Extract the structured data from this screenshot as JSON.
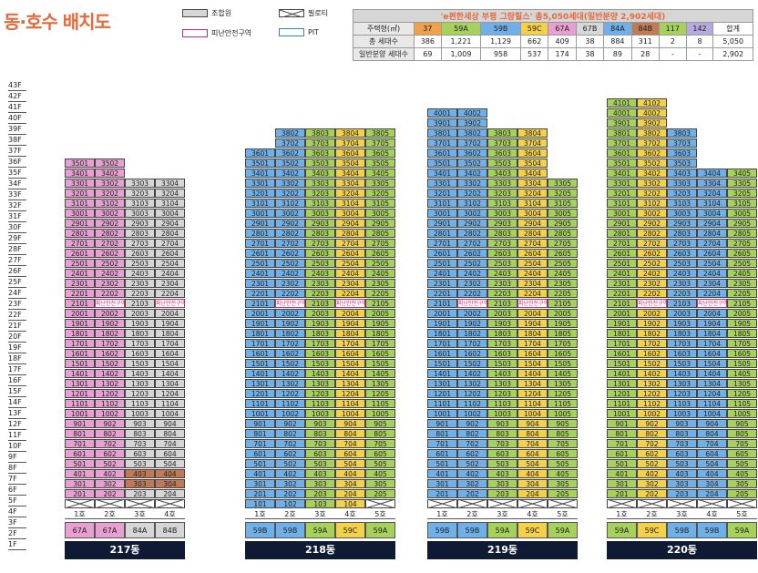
{
  "title": "동·호수 배치도",
  "legend": {
    "joint": "조합원",
    "pilotis": "필로티",
    "refuge": "피난안전구역",
    "pit": "PIT"
  },
  "stats": {
    "header": "'e편한세상 부평 그랑힐스' 총5,050세대(일반분양 2,902세대)",
    "col_label": "주택형(㎡)",
    "types": [
      "37",
      "59A",
      "59B",
      "59C",
      "67A",
      "67B",
      "84A",
      "84B",
      "117",
      "142",
      "합계"
    ],
    "type_colors": [
      "#f0a24a",
      "#a6d15a",
      "#6fb0e8",
      "#f3d24a",
      "#e7a0d1",
      "#d8d8d8",
      "#6fb0e8",
      "#c07a55",
      "#a6d15a",
      "#b7a8e0",
      "#ffffff"
    ],
    "total_label": "총 세대수",
    "totals": [
      "386",
      "1,221",
      "1,129",
      "662",
      "409",
      "38",
      "884",
      "311",
      "2",
      "8",
      "5,050"
    ],
    "general_label": "일반분양 세대수",
    "general": [
      "69",
      "1,009",
      "958",
      "537",
      "174",
      "38",
      "89",
      "28",
      "-",
      "-",
      "2,902"
    ]
  },
  "floor_labels": [
    "43F",
    "42F",
    "41F",
    "40F",
    "39F",
    "38F",
    "37F",
    "36F",
    "35F",
    "34F",
    "33F",
    "32F",
    "31F",
    "30F",
    "29F",
    "28F",
    "27F",
    "26F",
    "25F",
    "24F",
    "23F",
    "22F",
    "21F",
    "20F",
    "19F",
    "18F",
    "17F",
    "16F",
    "15F",
    "14F",
    "13F",
    "12F",
    "11F",
    "10F",
    "9F",
    "8F",
    "7F",
    "6F",
    "5F",
    "4F",
    "3F",
    "2F",
    "1F"
  ],
  "colors": {
    "59A": "#a6d15a",
    "59B": "#6fb0e8",
    "59C": "#f3d24a",
    "67A": "#e7a0d1",
    "84A": "#6fb0e8",
    "84B": "#c07a55",
    "joint": "#d6d6d6",
    "refuge": "#c0306b",
    "bar": "#0f1a35"
  },
  "refuge_text": "피난안전구역",
  "buildings": [
    {
      "name": "217동",
      "lines": [
        "1호",
        "2호",
        "3호",
        "4호"
      ],
      "types": [
        "67A",
        "67A",
        "84A",
        "84B"
      ],
      "line_colors": [
        "#e7a0d1",
        "#e7a0d1",
        "#d6d6d6",
        "#d6d6d6"
      ],
      "max_floors": [
        35,
        35,
        33,
        33
      ],
      "pilotis_floors": 1
    },
    {
      "name": "218동",
      "lines": [
        "1호",
        "2호",
        "3호",
        "4호",
        "5호"
      ],
      "types": [
        "59B",
        "59B",
        "59A",
        "59C",
        "59A"
      ],
      "line_colors": [
        "#6fb0e8",
        "#6fb0e8",
        "#a6d15a",
        "#f3d24a",
        "#a6d15a"
      ],
      "max_floors": [
        36,
        38,
        38,
        38,
        38
      ],
      "pilotis_floors": 0
    },
    {
      "name": "219동",
      "lines": [
        "1호",
        "2호",
        "3호",
        "4호",
        "5호"
      ],
      "types": [
        "59B",
        "59B",
        "59A",
        "59C",
        "59A"
      ],
      "line_colors": [
        "#6fb0e8",
        "#6fb0e8",
        "#a6d15a",
        "#f3d24a",
        "#a6d15a"
      ],
      "max_floors": [
        40,
        40,
        38,
        38,
        33
      ],
      "pilotis_floors": 1
    },
    {
      "name": "220동",
      "lines": [
        "1호",
        "2호",
        "3호",
        "4호",
        "5호"
      ],
      "types": [
        "59A",
        "59C",
        "59B",
        "59B",
        "59A"
      ],
      "line_colors": [
        "#a6d15a",
        "#f3d24a",
        "#6fb0e8",
        "#6fb0e8",
        "#a6d15a"
      ],
      "max_floors": [
        41,
        41,
        38,
        34,
        34
      ],
      "pilotis_floors": 1
    }
  ]
}
